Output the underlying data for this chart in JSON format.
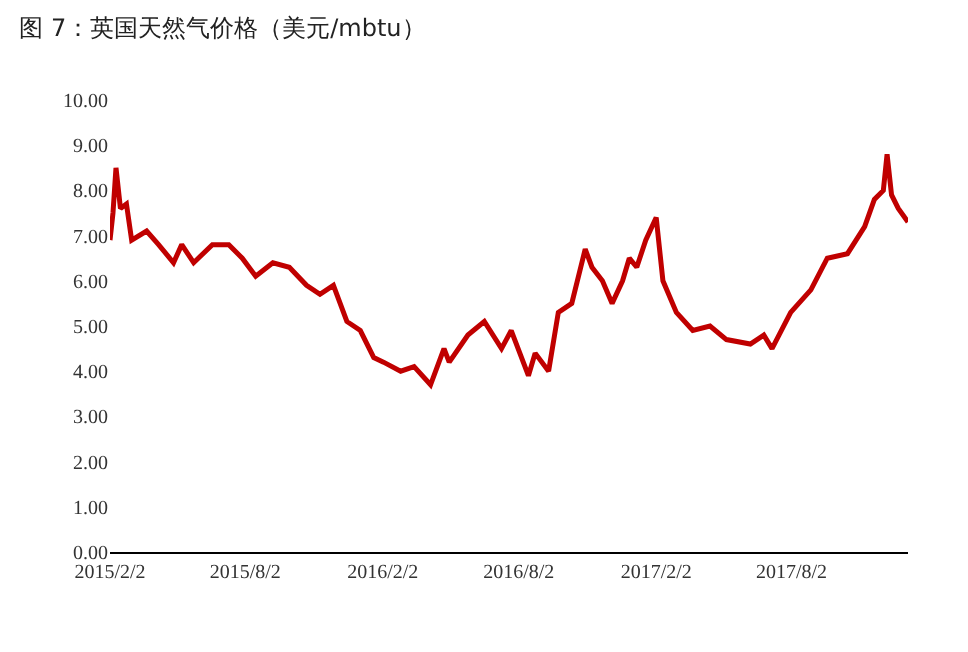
{
  "chart_data": {
    "type": "line",
    "title": "图 7：英国天然气价格（美元/mbtu）",
    "x": [
      "2015-02-02",
      "2015-02-06",
      "2015-02-10",
      "2015-02-16",
      "2015-02-24",
      "2015-03-03",
      "2015-03-23",
      "2015-04-08",
      "2015-04-28",
      "2015-05-09",
      "2015-05-25",
      "2015-06-19",
      "2015-07-11",
      "2015-07-29",
      "2015-08-16",
      "2015-09-08",
      "2015-09-30",
      "2015-10-23",
      "2015-11-10",
      "2015-11-28",
      "2015-12-16",
      "2016-01-03",
      "2016-01-21",
      "2016-02-03",
      "2016-02-26",
      "2016-03-15",
      "2016-04-06",
      "2016-04-24",
      "2016-05-01",
      "2016-05-26",
      "2016-06-17",
      "2016-07-10",
      "2016-07-23",
      "2016-08-15",
      "2016-08-24",
      "2016-09-11",
      "2016-09-24",
      "2016-10-12",
      "2016-10-30",
      "2016-11-08",
      "2016-11-22",
      "2016-12-05",
      "2016-12-19",
      "2016-12-28",
      "2017-01-07",
      "2017-01-19",
      "2017-02-02",
      "2017-02-11",
      "2017-03-01",
      "2017-03-23",
      "2017-04-15",
      "2017-05-07",
      "2017-06-08",
      "2017-06-26",
      "2017-07-07",
      "2017-08-01",
      "2017-08-28",
      "2017-09-19",
      "2017-10-16",
      "2017-11-08",
      "2017-11-21",
      "2017-12-03",
      "2017-12-08",
      "2017-12-14",
      "2017-12-23",
      "2018-01-05"
    ],
    "series": [
      {
        "color": "#c00000",
        "values": [
          6.9,
          7.5,
          8.5,
          7.6,
          7.7,
          6.9,
          7.1,
          6.8,
          6.4,
          6.8,
          6.4,
          6.8,
          6.8,
          6.5,
          6.1,
          6.4,
          6.3,
          5.9,
          5.7,
          5.9,
          5.1,
          4.9,
          4.3,
          4.2,
          4.0,
          4.1,
          3.7,
          4.5,
          4.2,
          4.8,
          5.1,
          4.5,
          4.9,
          3.9,
          4.4,
          4.0,
          5.3,
          5.5,
          6.7,
          6.3,
          6.0,
          5.5,
          6.0,
          6.5,
          6.3,
          6.9,
          7.4,
          6.0,
          5.3,
          4.9,
          5.0,
          4.7,
          4.6,
          4.8,
          4.5,
          5.3,
          5.8,
          6.5,
          6.6,
          7.2,
          7.8,
          8.0,
          8.8,
          7.9,
          7.6,
          7.3
        ]
      }
    ],
    "xlim": [
      "2015-02-02",
      "2018-01-05"
    ],
    "xticks": [
      {
        "value": "2015-02-02",
        "label": "2015/2/2"
      },
      {
        "value": "2015-08-02",
        "label": "2015/8/2"
      },
      {
        "value": "2016-02-02",
        "label": "2016/2/2"
      },
      {
        "value": "2016-08-02",
        "label": "2016/8/2"
      },
      {
        "value": "2017-02-02",
        "label": "2017/2/2"
      },
      {
        "value": "2017-08-02",
        "label": "2017/8/2"
      }
    ],
    "ylim": [
      0,
      10
    ],
    "yticks": [
      {
        "value": 0,
        "label": "0.00"
      },
      {
        "value": 1,
        "label": "1.00"
      },
      {
        "value": 2,
        "label": "2.00"
      },
      {
        "value": 3,
        "label": "3.00"
      },
      {
        "value": 4,
        "label": "4.00"
      },
      {
        "value": 5,
        "label": "5.00"
      },
      {
        "value": 6,
        "label": "6.00"
      },
      {
        "value": 7,
        "label": "7.00"
      },
      {
        "value": 8,
        "label": "8.00"
      },
      {
        "value": 9,
        "label": "9.00"
      },
      {
        "value": 10,
        "label": "10.00"
      }
    ],
    "grid": false
  }
}
